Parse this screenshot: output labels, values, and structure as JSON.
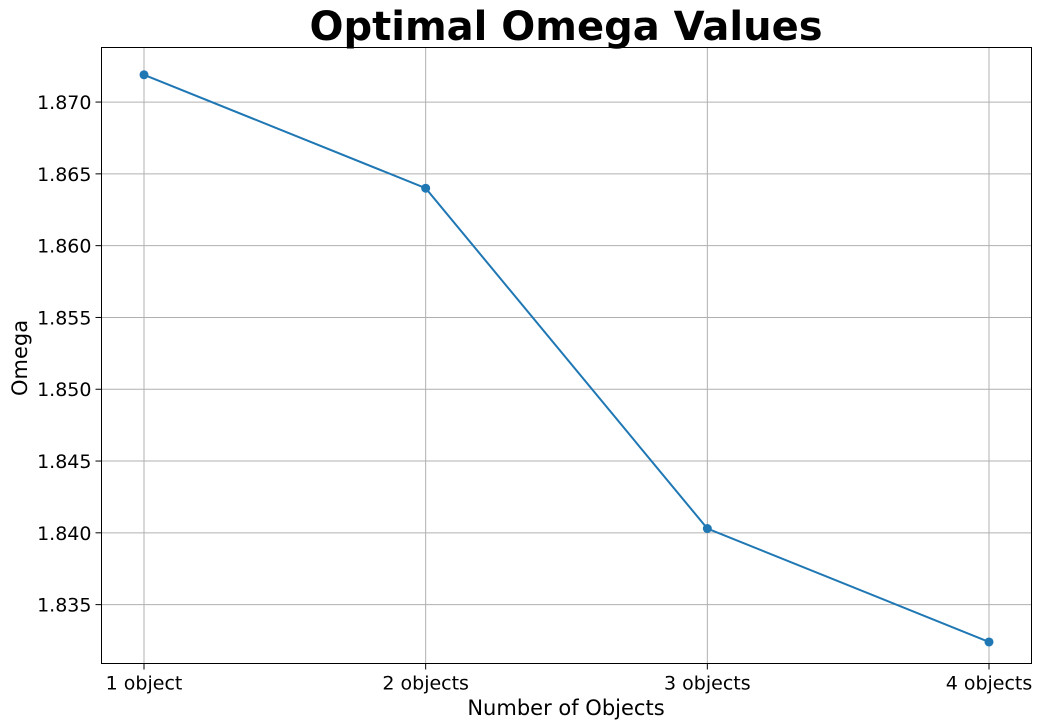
{
  "chart_data": {
    "type": "line",
    "title": "Optimal Omega Values",
    "xlabel": "Number of Objects",
    "ylabel": "Omega",
    "categories": [
      "1 object",
      "2 objects",
      "3 objects",
      "4 objects"
    ],
    "series": [
      {
        "values": [
          1.8719,
          1.864,
          1.8403,
          1.8324
        ],
        "color": "#1f77b4",
        "marker": "circle"
      }
    ],
    "y_ticks": [
      "1.835",
      "1.840",
      "1.845",
      "1.850",
      "1.855",
      "1.860",
      "1.865",
      "1.870"
    ],
    "y_tick_values": [
      1.835,
      1.84,
      1.845,
      1.85,
      1.855,
      1.86,
      1.865,
      1.87
    ],
    "ylim": [
      1.8309,
      1.8738
    ],
    "grid": true,
    "legend": false
  }
}
